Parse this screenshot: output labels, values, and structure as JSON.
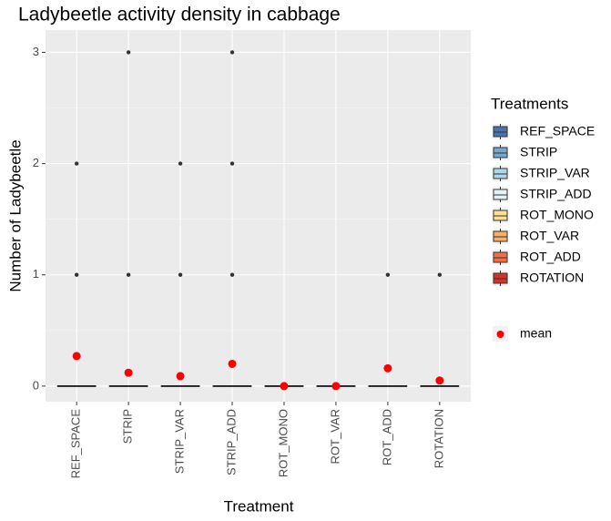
{
  "chart_data": {
    "type": "box",
    "title": "Ladybeetle activity density in cabbage",
    "x_label": "Treatment",
    "y_label": "Number of Ladybeetle",
    "legend_title": "Treatments",
    "categories": [
      "REF_SPACE",
      "STRIP",
      "STRIP_VAR",
      "STRIP_ADD",
      "ROT_MONO",
      "ROT_VAR",
      "ROT_ADD",
      "ROTATION"
    ],
    "series": [
      {
        "name": "REF_SPACE",
        "color": "#4a72b0",
        "min": 0,
        "q1": 0,
        "median": 0,
        "q3": 0,
        "max": 0,
        "outliers": [
          1,
          2
        ]
      },
      {
        "name": "STRIP",
        "color": "#74a9cf",
        "min": 0,
        "q1": 0,
        "median": 0,
        "q3": 0,
        "max": 0,
        "outliers": [
          1,
          3
        ]
      },
      {
        "name": "STRIP_VAR",
        "color": "#abd9e9",
        "min": 0,
        "q1": 0,
        "median": 0,
        "q3": 0,
        "max": 0,
        "outliers": [
          1,
          2
        ]
      },
      {
        "name": "STRIP_ADD",
        "color": "#e0f3f8",
        "min": 0,
        "q1": 0,
        "median": 0,
        "q3": 0,
        "max": 0,
        "outliers": [
          1,
          2,
          3
        ]
      },
      {
        "name": "ROT_MONO",
        "color": "#fee090",
        "min": 0,
        "q1": 0,
        "median": 0,
        "q3": 0,
        "max": 0,
        "outliers": []
      },
      {
        "name": "ROT_VAR",
        "color": "#fdae61",
        "min": 0,
        "q1": 0,
        "median": 0,
        "q3": 0,
        "max": 0,
        "outliers": []
      },
      {
        "name": "ROT_ADD",
        "color": "#f46d43",
        "min": 0,
        "q1": 0,
        "median": 0,
        "q3": 0,
        "max": 0,
        "outliers": [
          1
        ]
      },
      {
        "name": "ROTATION",
        "color": "#d73027",
        "min": 0,
        "q1": 0,
        "median": 0,
        "q3": 0,
        "max": 0,
        "outliers": [
          1
        ]
      }
    ],
    "means": {
      "name": "mean",
      "color": "#ff0000",
      "values": [
        0.27,
        0.12,
        0.09,
        0.2,
        0,
        0,
        0.16,
        0.05
      ]
    },
    "ylim": [
      -0.14,
      3.2
    ],
    "yticks": [
      0,
      1,
      2,
      3
    ],
    "grid": true
  }
}
